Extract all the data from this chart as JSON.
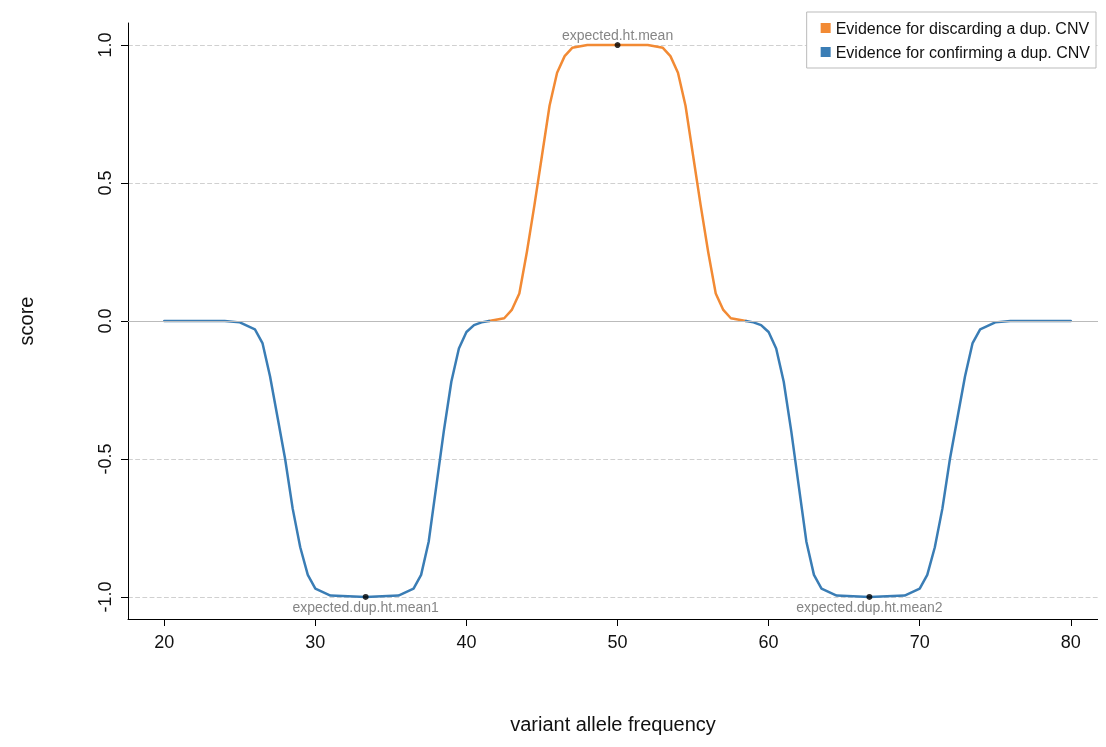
{
  "chart_data": {
    "type": "line",
    "xlabel": "variant allele frequency",
    "ylabel": "score",
    "xlim": [
      17.6,
      81.8
    ],
    "ylim": [
      -1.08,
      1.08
    ],
    "xticks": [
      20,
      30,
      40,
      50,
      60,
      70,
      80
    ],
    "yticks": [
      {
        "value": -1,
        "label": "-1.0"
      },
      -0.5,
      {
        "value": 0,
        "label": "0.0"
      },
      0.5,
      {
        "value": 1,
        "label": "1.0"
      }
    ],
    "grid": "y",
    "legend": "top right",
    "marker": "none",
    "line_style": "solid",
    "ref_lines": [
      {
        "axis": "y",
        "value": 0,
        "color": "#bbbbbb",
        "line_style": "solid"
      }
    ],
    "series": [
      {
        "name": "Evidence for discarding a dup. CNV",
        "color": "#f28a34",
        "x": [
          41.5,
          42.5,
          43,
          43.5,
          44,
          44.5,
          45,
          45.5,
          46,
          46.5,
          47,
          48,
          50,
          52,
          53,
          53.5,
          54,
          54.5,
          55,
          55.5,
          56,
          56.5,
          57,
          57.5,
          58.5
        ],
        "values": [
          0,
          0.01,
          0.04,
          0.1,
          0.25,
          0.42,
          0.6,
          0.78,
          0.9,
          0.96,
          0.99,
          1,
          1,
          1,
          0.99,
          0.96,
          0.9,
          0.78,
          0.6,
          0.42,
          0.25,
          0.1,
          0.04,
          0.01,
          0
        ]
      },
      {
        "name": "Evidence for confirming a dup. CNV",
        "color": "#3a7db5",
        "x": [
          20,
          24,
          25,
          26,
          26.5,
          27,
          27.5,
          28,
          28.5,
          29,
          29.5,
          30,
          31,
          33.33,
          35.5,
          36.5,
          37,
          37.5,
          38,
          38.5,
          39,
          39.5,
          40,
          40.5,
          41,
          41.5,
          50,
          58.5,
          59,
          59.5,
          60,
          60.5,
          61,
          61.5,
          62,
          62.5,
          63,
          63.5,
          64.5,
          66.67,
          69,
          70,
          70.5,
          71,
          71.5,
          72,
          72.5,
          73,
          73.5,
          74,
          75,
          76,
          80
        ],
        "values": [
          0,
          0,
          -0.005,
          -0.03,
          -0.08,
          -0.2,
          -0.35,
          -0.5,
          -0.68,
          -0.82,
          -0.92,
          -0.97,
          -0.995,
          -1,
          -0.995,
          -0.97,
          -0.92,
          -0.8,
          -0.6,
          -0.4,
          -0.22,
          -0.1,
          -0.04,
          -0.015,
          -0.005,
          0,
          null,
          0,
          -0.005,
          -0.015,
          -0.04,
          -0.1,
          -0.22,
          -0.4,
          -0.6,
          -0.8,
          -0.92,
          -0.97,
          -0.995,
          -1,
          -0.995,
          -0.97,
          -0.92,
          -0.82,
          -0.68,
          -0.5,
          -0.35,
          -0.2,
          -0.08,
          -0.03,
          -0.005,
          0,
          0
        ]
      },
      {
        "type": "scatter",
        "color": "#000000",
        "marker": "circle",
        "x": [
          33.33,
          50,
          66.67
        ],
        "values": [
          -1,
          1,
          -1
        ]
      }
    ],
    "annotations": [
      {
        "text": "expected.dup.ht.mean1",
        "x": 33.33,
        "y": -1
      },
      {
        "text": "expected.ht.mean",
        "x": 50,
        "y": 1
      },
      {
        "text": "expected.dup.ht.mean2",
        "x": 66.67,
        "y": -1
      }
    ]
  }
}
